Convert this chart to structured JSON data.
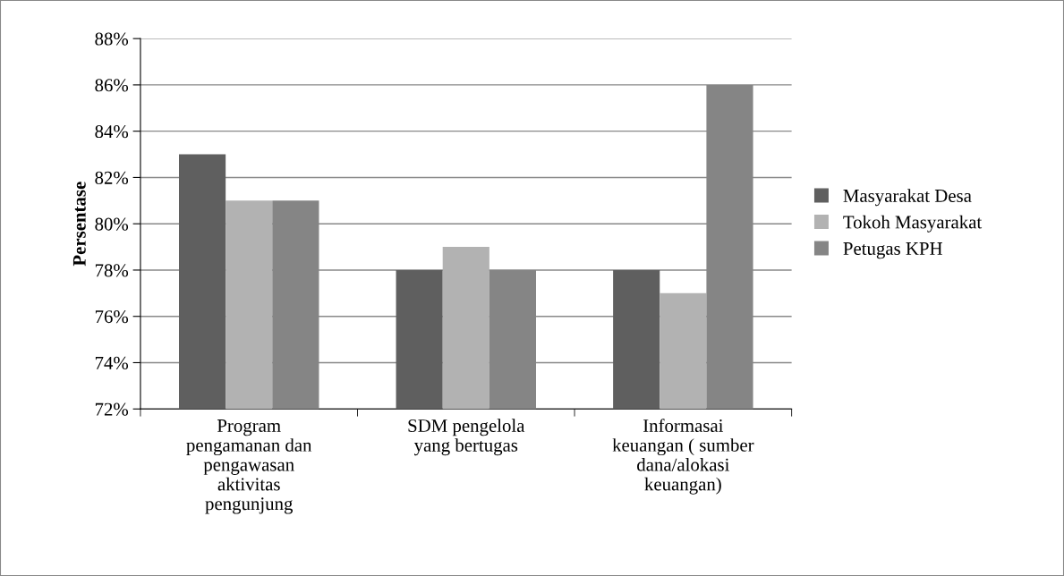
{
  "chart_data": {
    "type": "bar",
    "ylabel": "Persentase",
    "categories": [
      "Program\npengamanan dan\npengawasan\naktivitas\npengunjung",
      "SDM pengelola\nyang bertugas",
      "Informasai\nkeuangan ( sumber\ndana/alokasi\nkeuangan)"
    ],
    "series": [
      {
        "name": "Masyarakat Desa",
        "color": "#5f5f5f",
        "values": [
          83,
          78,
          78
        ]
      },
      {
        "name": "Tokoh Masyarakat",
        "color": "#b2b2b2",
        "values": [
          81,
          79,
          77
        ]
      },
      {
        "name": "Petugas KPH",
        "color": "#858585",
        "values": [
          81,
          78,
          86
        ]
      }
    ],
    "ylim": [
      72,
      88
    ],
    "yticks": [
      {
        "value": 72,
        "label": "72%"
      },
      {
        "value": 74,
        "label": "74%"
      },
      {
        "value": 76,
        "label": "76%"
      },
      {
        "value": 78,
        "label": "78%"
      },
      {
        "value": 80,
        "label": "80%"
      },
      {
        "value": 82,
        "label": "82%"
      },
      {
        "value": 84,
        "label": "84%"
      },
      {
        "value": 86,
        "label": "86%"
      },
      {
        "value": 88,
        "label": "88%"
      }
    ],
    "grid": "y",
    "legend": "right"
  }
}
